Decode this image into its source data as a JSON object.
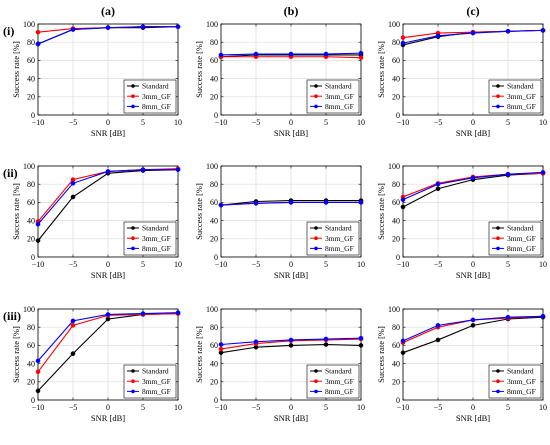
{
  "chart_data": {
    "columns": [
      "(a)",
      "(b)",
      "(c)"
    ],
    "rows": [
      "(i)",
      "(ii)",
      "(iii)"
    ],
    "xlabel": "SNR [dB]",
    "ylabel": "Success rate [%]",
    "x": [
      -10,
      -5,
      0,
      5,
      10
    ],
    "xticks": [
      -10,
      -5,
      0,
      5,
      10
    ],
    "xtick_labels": [
      "−10",
      "−5",
      "0",
      "5",
      "10"
    ],
    "yticks": [
      0,
      20,
      40,
      60,
      80,
      100
    ],
    "ytick_labels": [
      "0",
      "20",
      "40",
      "60",
      "80",
      "100"
    ],
    "xlim": [
      -10,
      10
    ],
    "ylim": [
      0,
      100
    ],
    "grid": true,
    "legend_position": "bottom-right",
    "type": "line",
    "series_names": [
      "Standard",
      "3mm_GF",
      "8mm_GF"
    ],
    "series_colors": [
      "#000000",
      "#ff0000",
      "#0000ff"
    ],
    "panels": [
      {
        "row": 0,
        "col": 0,
        "series": [
          {
            "name": "Standard",
            "values": [
              78,
              94,
              96,
              96,
              97
            ]
          },
          {
            "name": "3mm_GF",
            "values": [
              91,
              95,
              96,
              97,
              97
            ]
          },
          {
            "name": "8mm_GF",
            "values": [
              78,
              94,
              96,
              97,
              97
            ]
          }
        ]
      },
      {
        "row": 0,
        "col": 1,
        "series": [
          {
            "name": "Standard",
            "values": [
              64,
              66,
              66,
              66,
              66
            ]
          },
          {
            "name": "3mm_GF",
            "values": [
              64,
              64,
              64,
              64,
              63
            ]
          },
          {
            "name": "8mm_GF",
            "values": [
              66,
              67,
              67,
              67,
              68
            ]
          }
        ]
      },
      {
        "row": 0,
        "col": 2,
        "series": [
          {
            "name": "Standard",
            "values": [
              77,
              86,
              91,
              92,
              93
            ]
          },
          {
            "name": "3mm_GF",
            "values": [
              85,
              90,
              91,
              92,
              93
            ]
          },
          {
            "name": "8mm_GF",
            "values": [
              79,
              87,
              90,
              92,
              93
            ]
          }
        ]
      },
      {
        "row": 1,
        "col": 0,
        "series": [
          {
            "name": "Standard",
            "values": [
              18,
              66,
              92,
              95,
              96
            ]
          },
          {
            "name": "3mm_GF",
            "values": [
              39,
              85,
              94,
              96,
              97
            ]
          },
          {
            "name": "8mm_GF",
            "values": [
              36,
              81,
              94,
              96,
              96
            ]
          }
        ]
      },
      {
        "row": 1,
        "col": 1,
        "series": [
          {
            "name": "Standard",
            "values": [
              57,
              61,
              62,
              62,
              62
            ]
          },
          {
            "name": "3mm_GF",
            "values": [
              57,
              59,
              60,
              60,
              60
            ]
          },
          {
            "name": "8mm_GF",
            "values": [
              57,
              59,
              60,
              60,
              60
            ]
          }
        ]
      },
      {
        "row": 1,
        "col": 2,
        "series": [
          {
            "name": "Standard",
            "values": [
              55,
              75,
              85,
              90,
              92
            ]
          },
          {
            "name": "3mm_GF",
            "values": [
              66,
              81,
              88,
              91,
              92
            ]
          },
          {
            "name": "8mm_GF",
            "values": [
              63,
              80,
              87,
              91,
              93
            ]
          }
        ]
      },
      {
        "row": 2,
        "col": 0,
        "series": [
          {
            "name": "Standard",
            "values": [
              10,
              51,
              89,
              94,
              95
            ]
          },
          {
            "name": "3mm_GF",
            "values": [
              31,
              82,
              93,
              94,
              95
            ]
          },
          {
            "name": "8mm_GF",
            "values": [
              43,
              87,
              94,
              95,
              96
            ]
          }
        ]
      },
      {
        "row": 2,
        "col": 1,
        "series": [
          {
            "name": "Standard",
            "values": [
              52,
              58,
              60,
              61,
              60
            ]
          },
          {
            "name": "3mm_GF",
            "values": [
              56,
              62,
              65,
              66,
              67
            ]
          },
          {
            "name": "8mm_GF",
            "values": [
              61,
              64,
              66,
              67,
              68
            ]
          }
        ]
      },
      {
        "row": 2,
        "col": 2,
        "series": [
          {
            "name": "Standard",
            "values": [
              52,
              66,
              82,
              89,
              91
            ]
          },
          {
            "name": "3mm_GF",
            "values": [
              63,
              80,
              88,
              90,
              92
            ]
          },
          {
            "name": "8mm_GF",
            "values": [
              65,
              82,
              88,
              91,
              92
            ]
          }
        ]
      }
    ]
  }
}
